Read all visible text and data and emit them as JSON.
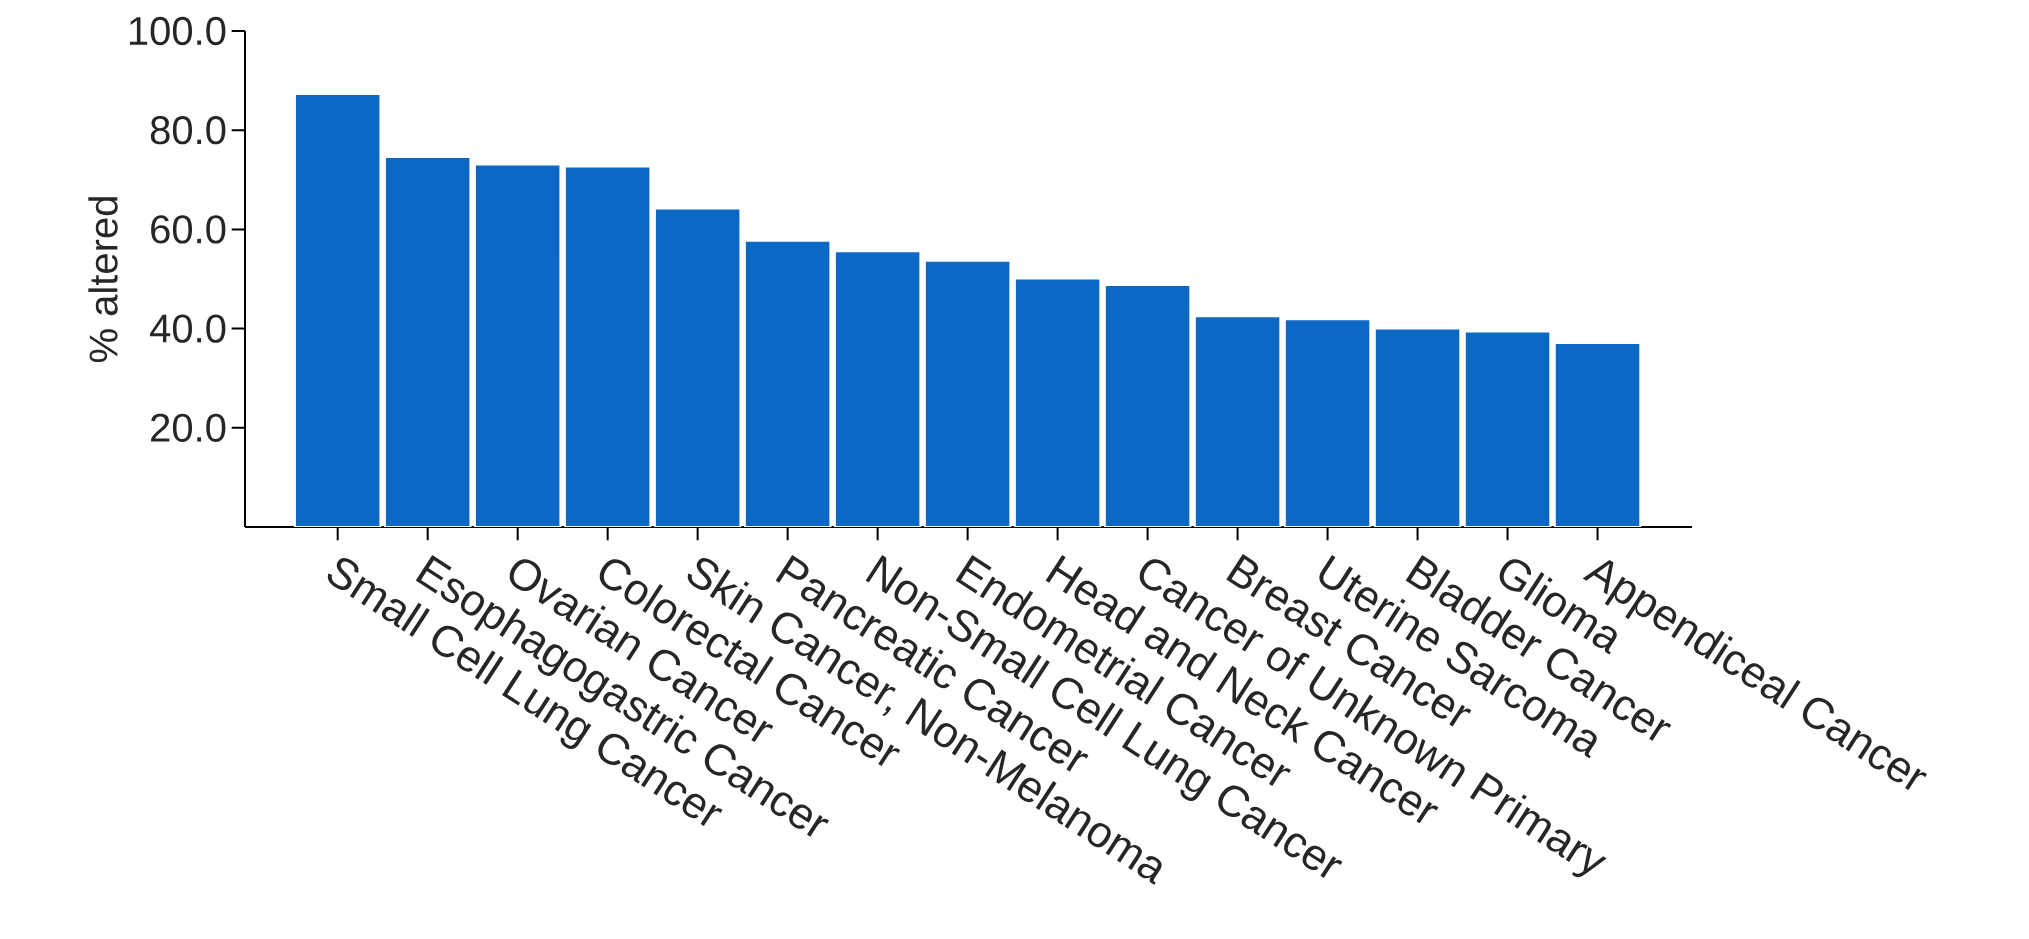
{
  "chart_data": {
    "type": "bar",
    "ylabel": "% altered",
    "categories": [
      "Small Cell Lung Cancer",
      "Esophagogastric Cancer",
      "Ovarian Cancer",
      "Colorectal Cancer",
      "Skin Cancer, Non-Melanoma",
      "Pancreatic Cancer",
      "Non-Small Cell Lung Cancer",
      "Endometrial Cancer",
      "Head and Neck Cancer",
      "Cancer of Unknown Primary",
      "Breast Cancer",
      "Uterine Sarcoma",
      "Bladder Cancer",
      "Glioma",
      "Appendiceal Cancer"
    ],
    "values": [
      87.3,
      74.6,
      73.1,
      72.7,
      64.2,
      57.7,
      55.6,
      53.7,
      50.1,
      48.8,
      42.5,
      41.9,
      40.0,
      39.4,
      37.1
    ],
    "color": "#0b68c4",
    "ylim": [
      0,
      100
    ],
    "yticks": [
      {
        "value": 20,
        "label": "20.0"
      },
      {
        "value": 40,
        "label": "40.0"
      },
      {
        "value": 60,
        "label": "60.0"
      },
      {
        "value": 80,
        "label": "80.0"
      },
      {
        "value": 100,
        "label": "100.0"
      }
    ],
    "grid": false
  }
}
